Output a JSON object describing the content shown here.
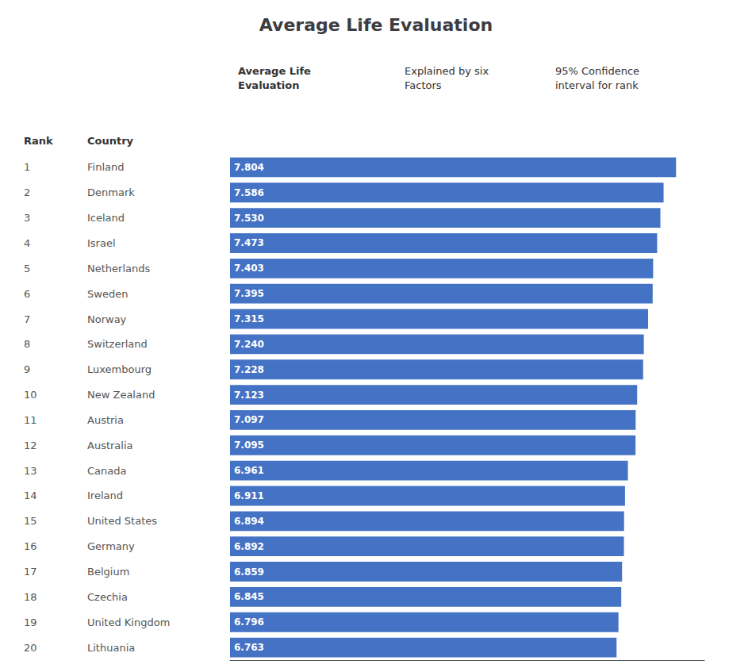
{
  "chart_data": {
    "type": "bar",
    "orientation": "horizontal",
    "title": "Average Life Evaluation",
    "annotations": [
      "Rank",
      "Country",
      "Average Life\nEvaluation",
      "Explained by six\nFactors",
      "95% Confidence\ninterval for rank"
    ],
    "categories": [
      "Finland",
      "Denmark",
      "Iceland",
      "Israel",
      "Netherlands",
      "Sweden",
      "Norway",
      "Switzerland",
      "Luxembourg",
      "New Zealand",
      "Austria",
      "Australia",
      "Canada",
      "Ireland",
      "United States",
      "Germany",
      "Belgium",
      "Czechia",
      "United Kingdom",
      "Lithuania"
    ],
    "ranks": [
      1,
      2,
      3,
      4,
      5,
      6,
      7,
      8,
      9,
      10,
      11,
      12,
      13,
      14,
      15,
      16,
      17,
      18,
      19,
      20
    ],
    "values": [
      7.804,
      7.586,
      7.53,
      7.473,
      7.403,
      7.395,
      7.315,
      7.24,
      7.228,
      7.123,
      7.097,
      7.095,
      6.961,
      6.911,
      6.894,
      6.892,
      6.859,
      6.845,
      6.796,
      6.763
    ],
    "value_labels": [
      "7.804",
      "7.586",
      "7.530",
      "7.473",
      "7.403",
      "7.395",
      "7.315",
      "7.240",
      "7.228",
      "7.123",
      "7.097",
      "7.095",
      "6.961",
      "6.911",
      "6.894",
      "6.892",
      "6.859",
      "6.845",
      "6.796",
      "6.763"
    ],
    "color": "#4472C4",
    "xlim": [
      0,
      8.3
    ],
    "tick_labels": false,
    "data_labels": true,
    "grid": false
  }
}
